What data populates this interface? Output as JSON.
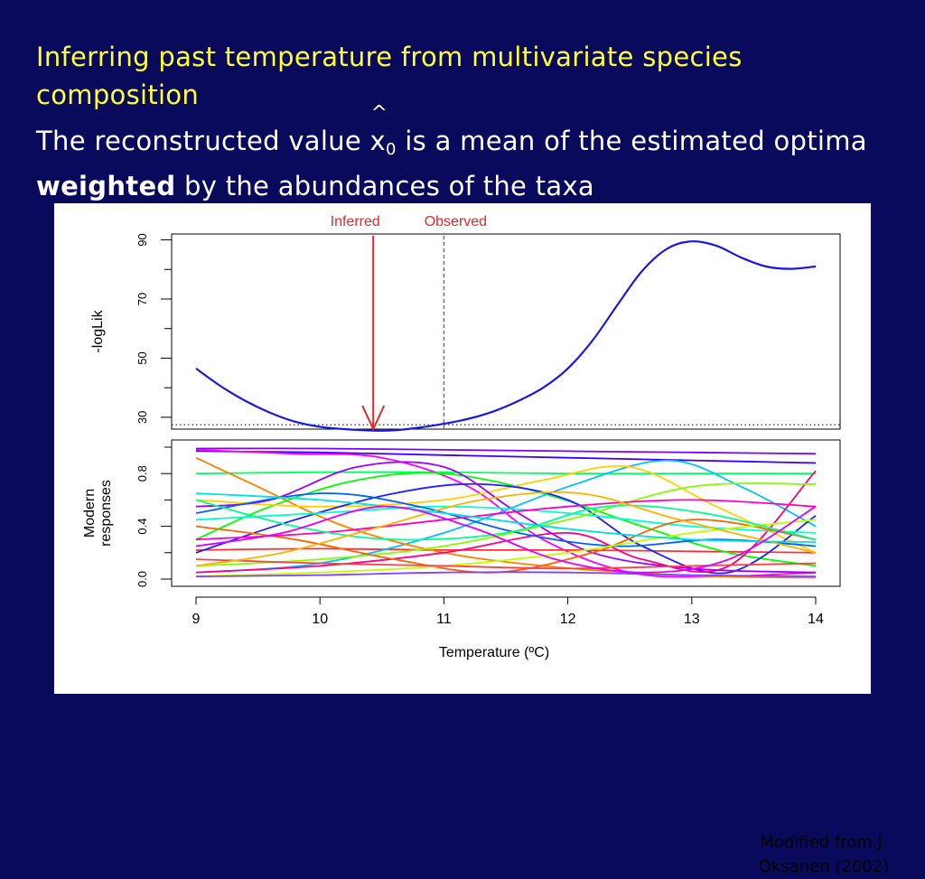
{
  "slide": {
    "title": "Inferring past temperature from multivariate species composition",
    "subtitle_prefix": "The reconstructed value ",
    "x_symbol": "x",
    "x_hat": "^",
    "x_sub": "0",
    "subtitle_mid": " is a mean of the estimated optima ",
    "subtitle_bold": "weighted",
    "subtitle_suffix": " by the abundances of the taxa",
    "credit": "Modified from J. Oksanen (2002)"
  },
  "chart_data": [
    {
      "type": "line",
      "ylabel": "-logLik",
      "xlim": [
        9,
        14
      ],
      "ylim": [
        26,
        92
      ],
      "yticks": [
        30,
        50,
        70,
        90
      ],
      "grid": false,
      "annotations": [
        {
          "label": "Inferred",
          "x": 10.43,
          "style": "solid-arrow",
          "color": "#e8262b"
        },
        {
          "label": "Observed",
          "x": 11.0,
          "style": "dashed-line",
          "color": "#e8262b"
        }
      ],
      "reference_y": 27.5,
      "series": [
        {
          "color": "#1a1adf",
          "x": [
            9.0,
            9.2,
            9.4,
            9.6,
            9.8,
            10.0,
            10.2,
            10.43,
            10.6,
            10.8,
            11.0,
            11.2,
            11.4,
            11.6,
            11.8,
            12.0,
            12.2,
            12.4,
            12.6,
            12.8,
            13.0,
            13.2,
            13.4,
            13.6,
            13.8,
            14.0
          ],
          "y": [
            46.5,
            40.5,
            35.5,
            31.5,
            28.5,
            26.8,
            26.0,
            25.5,
            25.6,
            26.5,
            27.8,
            29.5,
            32.0,
            35.5,
            40.0,
            46.5,
            56.0,
            68.0,
            79.5,
            87.0,
            89.5,
            88.0,
            84.0,
            81.0,
            80.2,
            81.0
          ]
        }
      ]
    },
    {
      "type": "line",
      "ylabel": "Modern responses",
      "xlabel": "Temperature (ºC)",
      "xlim": [
        9,
        14
      ],
      "ylim": [
        0,
        1
      ],
      "yticks": [
        0.0,
        0.4,
        0.8
      ],
      "xticks": [
        9,
        10,
        11,
        12,
        13,
        14
      ],
      "grid": false,
      "series": [
        {
          "color": "#7a00ff",
          "x": [
            9,
            10,
            11,
            12,
            13,
            14
          ],
          "y": [
            0.99,
            0.99,
            0.98,
            0.97,
            0.96,
            0.95
          ]
        },
        {
          "color": "#3a00ff",
          "x": [
            9,
            10,
            11,
            12,
            13,
            14
          ],
          "y": [
            0.97,
            0.96,
            0.94,
            0.92,
            0.9,
            0.88
          ]
        },
        {
          "color": "#00ff60",
          "x": [
            9,
            10,
            11,
            12,
            13,
            14
          ],
          "y": [
            0.8,
            0.81,
            0.81,
            0.8,
            0.8,
            0.8
          ]
        },
        {
          "color": "#ff00ff",
          "x": [
            9,
            9.8,
            10.5,
            11.2,
            11.8,
            12.5,
            13.2,
            14
          ],
          "y": [
            0.98,
            0.95,
            0.92,
            0.7,
            0.3,
            0.05,
            0.02,
            0.05
          ]
        },
        {
          "color": "#ff3030",
          "x": [
            9,
            10,
            11,
            12,
            13,
            14
          ],
          "y": [
            0.22,
            0.23,
            0.22,
            0.22,
            0.21,
            0.2
          ]
        },
        {
          "color": "#00c0ff",
          "x": [
            9,
            10,
            11,
            12,
            12.8,
            13.4,
            14
          ],
          "y": [
            0.05,
            0.12,
            0.35,
            0.7,
            0.9,
            0.7,
            0.4
          ]
        },
        {
          "color": "#ff8000",
          "x": [
            9,
            9.5,
            10.2,
            11,
            11.8,
            12.5,
            13.2,
            14
          ],
          "y": [
            0.92,
            0.7,
            0.4,
            0.2,
            0.1,
            0.05,
            0.02,
            0.01
          ]
        },
        {
          "color": "#00ff00",
          "x": [
            9,
            9.6,
            10.3,
            11,
            11.8,
            12.6,
            13.3,
            14
          ],
          "y": [
            0.3,
            0.55,
            0.75,
            0.8,
            0.65,
            0.4,
            0.2,
            0.1
          ]
        },
        {
          "color": "#ffd000",
          "x": [
            9,
            10,
            11,
            11.8,
            12.5,
            13.2,
            14
          ],
          "y": [
            0.6,
            0.55,
            0.6,
            0.75,
            0.85,
            0.55,
            0.2
          ]
        },
        {
          "color": "#2020ff",
          "x": [
            9,
            9.8,
            10.6,
            11.3,
            12,
            12.6,
            13.3,
            14
          ],
          "y": [
            0.2,
            0.45,
            0.65,
            0.72,
            0.6,
            0.25,
            0.05,
            0.48
          ]
        },
        {
          "color": "#ff0080",
          "x": [
            9,
            10,
            11,
            12,
            12.6,
            13.3,
            14
          ],
          "y": [
            0.05,
            0.1,
            0.2,
            0.35,
            0.15,
            0.1,
            0.82
          ]
        },
        {
          "color": "#a000ff",
          "x": [
            9,
            9.6,
            10.3,
            11,
            11.6,
            12.2,
            13,
            14
          ],
          "y": [
            0.55,
            0.6,
            0.85,
            0.85,
            0.5,
            0.2,
            0.08,
            0.05
          ]
        },
        {
          "color": "#00ffd0",
          "x": [
            9,
            10,
            11,
            12,
            13,
            14
          ],
          "y": [
            0.45,
            0.5,
            0.55,
            0.5,
            0.4,
            0.35
          ]
        },
        {
          "color": "#80ff00",
          "x": [
            9,
            10,
            11,
            12,
            13,
            14
          ],
          "y": [
            0.1,
            0.15,
            0.25,
            0.45,
            0.7,
            0.72
          ]
        },
        {
          "color": "#ff6000",
          "x": [
            9,
            9.8,
            10.6,
            11.4,
            12.2,
            13,
            14
          ],
          "y": [
            0.4,
            0.3,
            0.15,
            0.05,
            0.2,
            0.45,
            0.3
          ]
        },
        {
          "color": "#0060ff",
          "x": [
            9,
            10,
            10.8,
            11.6,
            12.4,
            13.2,
            14
          ],
          "y": [
            0.5,
            0.65,
            0.55,
            0.35,
            0.25,
            0.3,
            0.25
          ]
        },
        {
          "color": "#ff00c0",
          "x": [
            9,
            10,
            11,
            12,
            13,
            14
          ],
          "y": [
            0.3,
            0.35,
            0.45,
            0.55,
            0.6,
            0.55
          ]
        },
        {
          "color": "#c0ff00",
          "x": [
            9,
            10,
            11,
            12,
            13,
            14
          ],
          "y": [
            0.02,
            0.05,
            0.1,
            0.2,
            0.35,
            0.45
          ]
        },
        {
          "color": "#00ff90",
          "x": [
            9,
            9.8,
            10.6,
            11.5,
            12.3,
            13.1,
            14
          ],
          "y": [
            0.6,
            0.4,
            0.3,
            0.35,
            0.55,
            0.5,
            0.3
          ]
        },
        {
          "color": "#ff4040",
          "x": [
            9,
            10,
            11,
            12,
            13,
            14
          ],
          "y": [
            0.15,
            0.12,
            0.1,
            0.08,
            0.1,
            0.12
          ]
        },
        {
          "color": "#8040ff",
          "x": [
            9,
            10,
            11,
            12,
            13,
            14
          ],
          "y": [
            0.02,
            0.03,
            0.05,
            0.05,
            0.03,
            0.02
          ]
        },
        {
          "color": "#ffb000",
          "x": [
            9,
            9.7,
            10.5,
            11.3,
            12.1,
            12.9,
            14
          ],
          "y": [
            0.1,
            0.2,
            0.4,
            0.6,
            0.65,
            0.45,
            0.2
          ]
        },
        {
          "color": "#00e0e0",
          "x": [
            9,
            10,
            11,
            12,
            13,
            14
          ],
          "y": [
            0.65,
            0.6,
            0.5,
            0.38,
            0.3,
            0.28
          ]
        },
        {
          "color": "#e000ff",
          "x": [
            9,
            9.7,
            10.5,
            11.2,
            11.9,
            12.6,
            13.3,
            14
          ],
          "y": [
            0.25,
            0.35,
            0.55,
            0.4,
            0.15,
            0.05,
            0.15,
            0.55
          ]
        }
      ]
    }
  ]
}
